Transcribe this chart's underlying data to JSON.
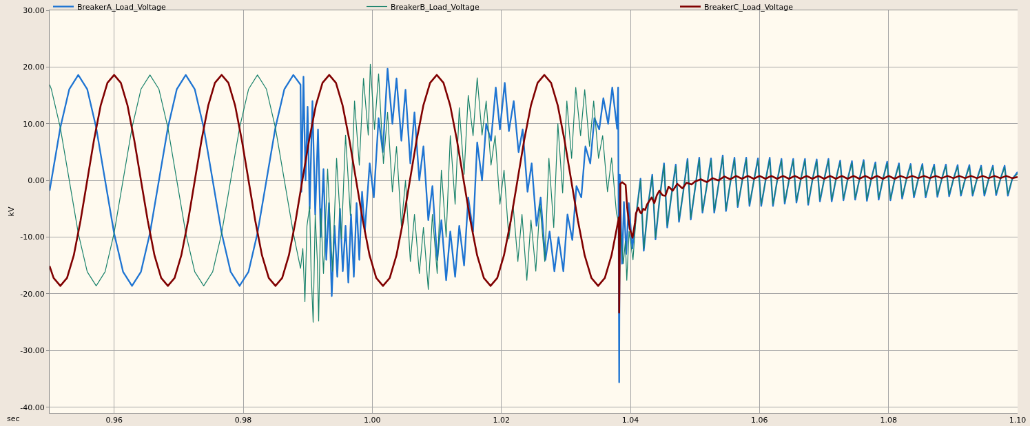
{
  "chart_data": {
    "type": "line",
    "xlabel": "sec",
    "ylabel": "kV",
    "xlim": [
      0.95,
      1.1
    ],
    "ylim": [
      -41,
      30
    ],
    "xticks": [
      {
        "value": 0.96,
        "label": "0.96"
      },
      {
        "value": 0.98,
        "label": "0.98"
      },
      {
        "value": 1.0,
        "label": "1.00"
      },
      {
        "value": 1.02,
        "label": "1.02"
      },
      {
        "value": 1.04,
        "label": "1.04"
      },
      {
        "value": 1.06,
        "label": "1.06"
      },
      {
        "value": 1.08,
        "label": "1.08"
      },
      {
        "value": 1.1,
        "label": "1.10"
      }
    ],
    "yticks": [
      {
        "value": -40,
        "label": "-40.00"
      },
      {
        "value": -30,
        "label": "-30.00"
      },
      {
        "value": -20,
        "label": "-20.00"
      },
      {
        "value": -10,
        "label": "-10.00"
      },
      {
        "value": 0,
        "label": "0.00"
      },
      {
        "value": 10,
        "label": "10.00"
      },
      {
        "value": 20,
        "label": "20.00"
      },
      {
        "value": 30,
        "label": "30.00"
      }
    ],
    "grid": true,
    "legend": "top",
    "line_style": "solid",
    "series": [
      {
        "name": "BreakerA_Load_Voltage",
        "color": "#1e74d2",
        "x": [
          0.95,
          0.95027,
          0.95166,
          0.95305,
          0.95444,
          0.95583,
          0.95722,
          0.9586,
          0.95999,
          0.96138,
          0.96277,
          0.96416,
          0.96555,
          0.96694,
          0.96833,
          0.96971,
          0.9711,
          0.97249,
          0.97388,
          0.97527,
          0.97666,
          0.97805,
          0.97944,
          0.98083,
          0.98221,
          0.9836,
          0.98499,
          0.98638,
          0.98777,
          0.98888,
          0.98902,
          0.98934,
          0.98966,
          0.98998,
          0.9903,
          0.99073,
          0.99116,
          0.99159,
          0.99201,
          0.99244,
          0.99287,
          0.99329,
          0.99372,
          0.99415,
          0.99458,
          0.995,
          0.99543,
          0.99586,
          0.99629,
          0.99671,
          0.99714,
          0.99757,
          0.99799,
          0.99842,
          0.99885,
          0.9996,
          1.00024,
          1.00098,
          1.00163,
          1.00237,
          1.00312,
          1.00376,
          1.00451,
          1.00515,
          1.0059,
          1.00654,
          1.00729,
          1.00793,
          1.00868,
          1.00932,
          1.01006,
          1.01071,
          1.01145,
          1.01209,
          1.01284,
          1.01348,
          1.01423,
          1.01487,
          1.01562,
          1.01626,
          1.01701,
          1.01765,
          1.0184,
          1.01914,
          1.01978,
          1.02053,
          1.02117,
          1.02192,
          1.02267,
          1.02331,
          1.02406,
          1.0247,
          1.02545,
          1.02609,
          1.02683,
          1.02748,
          1.02822,
          1.02886,
          1.02961,
          1.03025,
          1.031,
          1.03164,
          1.03239,
          1.03303,
          1.03378,
          1.03442,
          1.03517,
          1.03581,
          1.03655,
          1.03719,
          1.03794,
          1.0381,
          1.03826,
          1.03836,
          1.0387,
          1.039,
          1.03935,
          1.03975,
          1.0403,
          1.04091,
          1.04157,
          1.04207,
          1.04273,
          1.04339,
          1.04389,
          1.04455,
          1.04521,
          1.04571,
          1.04637,
          1.04703,
          1.04753,
          1.04819,
          1.04885,
          1.04935,
          1.05001,
          1.05067,
          1.05117,
          1.05183,
          1.05249,
          1.05299,
          1.05365,
          1.05431,
          1.05481,
          1.05547,
          1.05613,
          1.05663,
          1.05729,
          1.05795,
          1.05845,
          1.05911,
          1.05977,
          1.06027,
          1.06093,
          1.06159,
          1.06209,
          1.06275,
          1.06341,
          1.06391,
          1.06457,
          1.06523,
          1.06573,
          1.06639,
          1.06705,
          1.06755,
          1.06821,
          1.06887,
          1.06937,
          1.07003,
          1.07069,
          1.07119,
          1.07185,
          1.07251,
          1.07301,
          1.07367,
          1.07433,
          1.07483,
          1.07549,
          1.07615,
          1.07665,
          1.07731,
          1.07797,
          1.07847,
          1.07913,
          1.07979,
          1.08029,
          1.08095,
          1.08161,
          1.08211,
          1.08277,
          1.08343,
          1.08393,
          1.08459,
          1.08525,
          1.08575,
          1.08641,
          1.08707,
          1.08757,
          1.08823,
          1.08889,
          1.08939,
          1.09005,
          1.09071,
          1.09121,
          1.09187,
          1.09253,
          1.09303,
          1.09369,
          1.09435,
          1.09485,
          1.09551,
          1.09617,
          1.09667,
          1.09733,
          1.09799,
          1.09849,
          1.09915,
          1.1
        ],
        "values": [
          -1.8,
          0,
          9.3,
          16.1,
          18.6,
          16.1,
          9.3,
          0,
          -9.3,
          -16.1,
          -18.6,
          -16.1,
          -9.3,
          0,
          9.3,
          16.1,
          18.6,
          16.1,
          9.3,
          0,
          -9.3,
          -16.1,
          -18.6,
          -16.1,
          -9.3,
          0,
          9.3,
          16.1,
          18.6,
          16.9,
          -2,
          18.3,
          0,
          13,
          -5,
          14,
          -6,
          9,
          -10,
          2,
          -14,
          -4,
          -20.4,
          -8,
          -17,
          -5,
          -16,
          -8,
          -18,
          -6,
          -17,
          -4,
          -14,
          -2,
          -9,
          3,
          -3,
          11,
          5,
          19.7,
          10,
          18,
          7,
          16,
          3,
          12,
          0,
          6,
          -7,
          -1,
          -14,
          -7,
          -17.6,
          -9,
          -17,
          -8,
          -15,
          -3,
          -9,
          6.7,
          0,
          10,
          7,
          16.4,
          9,
          17.2,
          8.7,
          14,
          5,
          9,
          -2,
          3,
          -8,
          -3,
          -14,
          -9,
          -16,
          -10,
          -16,
          -6,
          -10.5,
          -1,
          -3,
          6,
          3,
          11,
          9,
          14.5,
          10,
          16.4,
          9.1,
          16.4,
          -35.6,
          1.0,
          -14.7,
          -3.8,
          -13,
          -4,
          -12,
          -6,
          0.3,
          -12.4,
          -4.5,
          1.0,
          -10.4,
          -3,
          3.0,
          -8.3,
          -2.5,
          2.8,
          -7.3,
          -2,
          3.8,
          -6.9,
          -1.5,
          4.0,
          -5.7,
          -1,
          3.9,
          -5.7,
          -0.8,
          4.4,
          -5.4,
          -0.5,
          4.0,
          -4.7,
          -0.3,
          4.0,
          -4.5,
          -0.2,
          3.9,
          -4.5,
          -0.1,
          4.0,
          -4.5,
          0,
          3.8,
          -4.1,
          0,
          3.8,
          -3.9,
          0.1,
          3.8,
          -4.3,
          0.1,
          3.7,
          -3.7,
          0.2,
          3.8,
          -3.7,
          0.2,
          3.5,
          -3.5,
          0.2,
          3.4,
          -3.4,
          0.2,
          3.6,
          -3.6,
          0.2,
          3.2,
          -3.4,
          0.2,
          3.3,
          -3.5,
          0.2,
          3.0,
          -3.2,
          0.2,
          2.9,
          -3.0,
          0.2,
          2.9,
          -3.0,
          0.2,
          2.8,
          -2.9,
          0.2,
          2.8,
          -2.8,
          0.2,
          2.7,
          -2.7,
          0.2,
          2.7,
          -2.7,
          0.2,
          2.6,
          -2.7,
          0.2,
          2.6,
          -2.6,
          0.2,
          2.6,
          -2.7,
          0.2,
          1.5
        ]
      },
      {
        "name": "BreakerB_Load_Voltage",
        "color": "#19826b",
        "x": [
          0.95,
          0.95027,
          0.95166,
          0.95305,
          0.95444,
          0.95583,
          0.95722,
          0.9586,
          0.95999,
          0.96138,
          0.96277,
          0.96416,
          0.96555,
          0.96694,
          0.96833,
          0.96971,
          0.9711,
          0.97249,
          0.97388,
          0.97527,
          0.97666,
          0.97805,
          0.97944,
          0.98083,
          0.98221,
          0.9836,
          0.98499,
          0.98638,
          0.98777,
          0.98888,
          0.98924,
          0.98956,
          0.98988,
          0.9903,
          0.99052,
          0.99084,
          0.99116,
          0.99148,
          0.99169,
          0.99201,
          0.99244,
          0.99308,
          0.99383,
          0.99447,
          0.99522,
          0.99586,
          0.99661,
          0.99725,
          0.99799,
          0.99864,
          0.99938,
          0.9997,
          1.00034,
          1.00098,
          1.00173,
          1.00237,
          1.00312,
          1.00376,
          1.00451,
          1.00515,
          1.0059,
          1.00654,
          1.00729,
          1.00793,
          1.00868,
          1.00932,
          1.01006,
          1.01071,
          1.01145,
          1.01209,
          1.01284,
          1.01348,
          1.01423,
          1.01487,
          1.01562,
          1.01626,
          1.01701,
          1.01765,
          1.0184,
          1.01904,
          1.01978,
          1.02042,
          1.02117,
          1.02181,
          1.02256,
          1.0232,
          1.02395,
          1.02459,
          1.02534,
          1.02598,
          1.02673,
          1.02737,
          1.02812,
          1.02876,
          1.0295,
          1.03015,
          1.03089,
          1.03153,
          1.03228,
          1.03292,
          1.03367,
          1.03431,
          1.03506,
          1.0357,
          1.03645,
          1.03709,
          1.03784,
          1.03848,
          1.0389,
          1.03922,
          1.03944,
          1.0398,
          1.0404,
          1.04091,
          1.04157,
          1.04207,
          1.04273,
          1.04339,
          1.04389,
          1.04455,
          1.04521,
          1.04571,
          1.04637,
          1.04703,
          1.04753,
          1.04819,
          1.04885,
          1.04935,
          1.05001,
          1.05067,
          1.05117,
          1.05183,
          1.05249,
          1.05299,
          1.05365,
          1.05431,
          1.05481,
          1.05547,
          1.05613,
          1.05663,
          1.05729,
          1.05795,
          1.05845,
          1.05911,
          1.05977,
          1.06027,
          1.06093,
          1.06159,
          1.06209,
          1.06275,
          1.06341,
          1.06391,
          1.06457,
          1.06523,
          1.06573,
          1.06639,
          1.06705,
          1.06755,
          1.06821,
          1.06887,
          1.06937,
          1.07003,
          1.07069,
          1.07119,
          1.07185,
          1.07251,
          1.07301,
          1.07367,
          1.07433,
          1.07483,
          1.07549,
          1.07615,
          1.07665,
          1.07731,
          1.07797,
          1.07847,
          1.07913,
          1.07979,
          1.08029,
          1.08095,
          1.08161,
          1.08211,
          1.08277,
          1.08343,
          1.08393,
          1.08459,
          1.08525,
          1.08575,
          1.08641,
          1.08707,
          1.08757,
          1.08823,
          1.08889,
          1.08939,
          1.09005,
          1.09071,
          1.09121,
          1.09187,
          1.09253,
          1.09303,
          1.09369,
          1.09435,
          1.09485,
          1.09551,
          1.09617,
          1.09667,
          1.09733,
          1.09799,
          1.09849,
          1.09915,
          1.1
        ],
        "values": [
          16.9,
          16.1,
          9.3,
          0,
          -9.3,
          -16.1,
          -18.6,
          -16.1,
          -9.3,
          0,
          9.3,
          16.1,
          18.6,
          16.1,
          9.3,
          0,
          -9.3,
          -16.1,
          -18.6,
          -16.1,
          -9.3,
          0,
          9.3,
          16.1,
          18.6,
          16.1,
          9.3,
          0,
          -9.3,
          -15.5,
          -12,
          -21.4,
          -8,
          -4.6,
          -16,
          -25,
          -6,
          -14,
          -24.8,
          -5,
          -16.4,
          2,
          -16,
          3.9,
          -10.3,
          8,
          -6.2,
          14,
          2.7,
          18,
          8,
          20.5,
          9,
          18.8,
          3,
          12,
          -2,
          6,
          -8,
          0,
          -14.3,
          -6,
          -16.4,
          -8.3,
          -19.2,
          -6,
          -16.4,
          1.8,
          -10,
          7.9,
          -4.2,
          12.8,
          1.1,
          15,
          7.9,
          18.1,
          8,
          14,
          2.7,
          7.9,
          -4.2,
          1.8,
          -10.3,
          -4.2,
          -14.3,
          -6,
          -17.6,
          -7,
          -16,
          -4.2,
          -14.3,
          3.9,
          -8.3,
          10,
          -2.2,
          14,
          3.9,
          16.4,
          7.9,
          16,
          6,
          14,
          3.9,
          7.9,
          -2,
          4,
          -5.8,
          -8.6,
          -14.7,
          -10.7,
          -17.6,
          -9,
          -14,
          -6,
          0.0,
          -12.1,
          -4.5,
          0.7,
          -10.1,
          -3,
          2.7,
          -8.0,
          -2.5,
          2.5,
          -7.0,
          -2,
          3.5,
          -6.6,
          -1.5,
          3.7,
          -5.4,
          -1,
          3.6,
          -5.4,
          -0.8,
          4.1,
          -5.1,
          -0.5,
          3.7,
          -4.4,
          -0.3,
          3.7,
          -4.2,
          -0.2,
          3.6,
          -4.2,
          -0.1,
          3.7,
          -4.2,
          0,
          3.5,
          -3.8,
          0,
          3.5,
          -3.6,
          0.1,
          3.5,
          -4.0,
          0.1,
          3.4,
          -3.4,
          0.2,
          3.5,
          -3.4,
          0.2,
          3.2,
          -3.2,
          0.2,
          3.1,
          -3.1,
          0.2,
          3.3,
          -3.3,
          0.2,
          2.9,
          -3.1,
          0.2,
          3.0,
          -3.2,
          0.2,
          2.7,
          -2.9,
          0.2,
          2.6,
          -2.7,
          0.2,
          2.6,
          -2.7,
          0.2,
          2.5,
          -2.6,
          0.2,
          2.5,
          -2.5,
          0.2,
          2.4,
          -2.4,
          0.2,
          2.4,
          -2.4,
          0.2,
          2.3,
          -2.4,
          0.2,
          2.3,
          -2.3,
          0.2,
          2.3,
          -2.4,
          0.2,
          1.2
        ]
      },
      {
        "name": "BreakerC_Load_Voltage",
        "color": "#800000",
        "x": [
          0.95,
          0.95062,
          0.95166,
          0.9527,
          0.95375,
          0.95479,
          0.95583,
          0.95687,
          0.95791,
          0.95896,
          0.96,
          0.96104,
          0.96208,
          0.96312,
          0.96416,
          0.96521,
          0.96625,
          0.96729,
          0.96833,
          0.96937,
          0.97041,
          0.97146,
          0.9725,
          0.97354,
          0.97458,
          0.97562,
          0.97666,
          0.97771,
          0.97875,
          0.97979,
          0.98083,
          0.98187,
          0.98291,
          0.98396,
          0.985,
          0.98604,
          0.98708,
          0.98812,
          0.98916,
          0.99021,
          0.99125,
          0.99229,
          0.99333,
          0.99437,
          0.99541,
          0.99646,
          0.9975,
          0.99854,
          0.99958,
          1.00062,
          1.00166,
          1.00271,
          1.00375,
          1.00479,
          1.00583,
          1.00687,
          1.00791,
          1.00896,
          1.01,
          1.01104,
          1.01208,
          1.01312,
          1.01416,
          1.01521,
          1.01625,
          1.01729,
          1.01833,
          1.01937,
          1.02041,
          1.02146,
          1.0225,
          1.02354,
          1.02458,
          1.02562,
          1.02666,
          1.02771,
          1.02875,
          1.02979,
          1.03083,
          1.03187,
          1.03291,
          1.03396,
          1.035,
          1.03604,
          1.03708,
          1.03812,
          1.03822,
          1.03826,
          1.03844,
          1.03872,
          1.03926,
          1.0395,
          1.0399,
          1.04033,
          1.0407,
          1.04086,
          1.04122,
          1.0415,
          1.04168,
          1.042,
          1.04229,
          1.0426,
          1.04283,
          1.04329,
          1.04371,
          1.0441,
          1.04449,
          1.04496,
          1.04542,
          1.04592,
          1.04656,
          1.04727,
          1.04806,
          1.0487,
          1.04948,
          1.05001,
          1.05092,
          1.05183,
          1.05274,
          1.05365,
          1.05456,
          1.05547,
          1.05638,
          1.05729,
          1.0582,
          1.05911,
          1.06002,
          1.06093,
          1.06184,
          1.06275,
          1.06366,
          1.06457,
          1.06548,
          1.06639,
          1.0673,
          1.06821,
          1.06912,
          1.07003,
          1.07094,
          1.07185,
          1.07276,
          1.07367,
          1.07458,
          1.07549,
          1.0764,
          1.07731,
          1.07822,
          1.07913,
          1.08004,
          1.08095,
          1.08186,
          1.08277,
          1.08368,
          1.08459,
          1.0855,
          1.08641,
          1.08732,
          1.08823,
          1.08914,
          1.09005,
          1.09096,
          1.09187,
          1.09278,
          1.09369,
          1.0946,
          1.09551,
          1.09642,
          1.09733,
          1.09824,
          1.09915,
          1.1
        ],
        "values": [
          -15.1,
          -17.2,
          -18.6,
          -17.2,
          -13.2,
          -7.1,
          0,
          7.1,
          13.2,
          17.2,
          18.6,
          17.2,
          13.2,
          7.1,
          0,
          -7.1,
          -13.2,
          -17.2,
          -18.6,
          -17.2,
          -13.2,
          -7.1,
          0,
          7.1,
          13.2,
          17.2,
          18.6,
          17.2,
          13.2,
          7.1,
          0,
          -7.1,
          -13.2,
          -17.2,
          -18.6,
          -17.2,
          -13.2,
          -7.1,
          0,
          7.1,
          13.2,
          17.2,
          18.6,
          17.2,
          13.2,
          7.1,
          0,
          -7.1,
          -13.2,
          -17.2,
          -18.6,
          -17.2,
          -13.2,
          -7.1,
          0,
          7.1,
          13.2,
          17.2,
          18.6,
          17.2,
          13.2,
          7.1,
          0,
          -7.1,
          -13.2,
          -17.2,
          -18.6,
          -17.2,
          -13.2,
          -7.1,
          0,
          7.1,
          13.2,
          17.2,
          18.6,
          17.2,
          13.2,
          7.1,
          0,
          -7.1,
          -13.2,
          -17.2,
          -18.6,
          -17.2,
          -13.2,
          -7.1,
          -6.5,
          -23.3,
          -0.6,
          -0.3,
          -0.8,
          -4.8,
          -8.5,
          -10.1,
          -7.5,
          -5.8,
          -4.8,
          -5.6,
          -5.8,
          -5.0,
          -5.2,
          -4.2,
          -3.8,
          -3.0,
          -4.0,
          -2.6,
          -1.8,
          -2.6,
          -2.7,
          -1.1,
          -1.8,
          -0.6,
          -1.4,
          -0.4,
          -0.7,
          -0.2,
          0.2,
          -0.3,
          0.4,
          0.0,
          0.7,
          0.2,
          0.8,
          0.3,
          0.8,
          0.3,
          0.8,
          0.3,
          0.8,
          0.3,
          0.8,
          0.3,
          0.8,
          0.3,
          0.8,
          0.3,
          0.8,
          0.3,
          0.8,
          0.3,
          0.8,
          0.3,
          0.8,
          0.3,
          0.8,
          0.3,
          0.8,
          0.3,
          0.8,
          0.3,
          0.8,
          0.4,
          0.8,
          0.4,
          0.8,
          0.4,
          0.8,
          0.4,
          0.8,
          0.4,
          0.8,
          0.4,
          0.8,
          0.4,
          0.8,
          0.4,
          0.8,
          0.4,
          0.8,
          0.4,
          0.6
        ]
      }
    ]
  }
}
